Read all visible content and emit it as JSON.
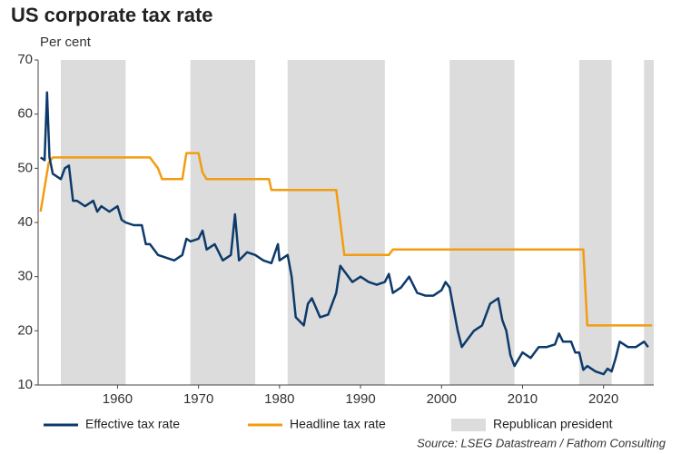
{
  "chart_data": {
    "type": "line",
    "title": "US corporate tax rate",
    "subtitle": "Per cent",
    "source": "Source: LSEG Datastream / Fathom Consulting",
    "xlim": [
      1950.2,
      2026.2
    ],
    "xticks": [
      1960,
      1970,
      1980,
      1990,
      2000,
      2010,
      2020
    ],
    "ylim": [
      10,
      70
    ],
    "yticks": [
      10,
      20,
      30,
      40,
      50,
      60,
      70
    ],
    "shading": {
      "name": "Republican president",
      "color": "#dcdcdc",
      "periods": [
        [
          1953,
          1961
        ],
        [
          1969,
          1977
        ],
        [
          1981,
          1993
        ],
        [
          2001,
          2009
        ],
        [
          2017,
          2021
        ],
        [
          2025,
          2026.2
        ]
      ]
    },
    "series": [
      {
        "name": "Effective tax rate",
        "color": "#0d3a6b",
        "x": [
          1950.5,
          1951,
          1951.3,
          1951.6,
          1952,
          1953,
          1953.5,
          1954,
          1954.5,
          1955,
          1956,
          1957,
          1957.5,
          1958,
          1959,
          1960,
          1960.5,
          1961,
          1962,
          1963,
          1963.5,
          1964,
          1965,
          1966,
          1967,
          1968,
          1968.5,
          1969,
          1970,
          1970.5,
          1971,
          1972,
          1973,
          1974,
          1974.5,
          1975,
          1976,
          1977,
          1978,
          1979,
          1979.8,
          1980,
          1981,
          1981.5,
          1982,
          1983,
          1983.5,
          1984,
          1985,
          1986,
          1987,
          1987.5,
          1988,
          1989,
          1990,
          1991,
          1992,
          1993,
          1993.5,
          1994,
          1995,
          1996,
          1997,
          1998,
          1999,
          2000,
          2000.5,
          2001,
          2001.5,
          2002,
          2002.5,
          2003,
          2004,
          2005,
          2006,
          2006.5,
          2007,
          2007.5,
          2008,
          2008.5,
          2009,
          2010,
          2011,
          2012,
          2013,
          2014,
          2014.5,
          2015,
          2016,
          2016.5,
          2017,
          2017.5,
          2018,
          2019,
          2020,
          2020.5,
          2021,
          2021.5,
          2022,
          2023,
          2024,
          2025,
          2025.5
        ],
        "values": [
          52,
          51.5,
          64,
          52,
          49,
          48,
          50,
          50.5,
          44,
          44,
          43,
          44,
          42,
          43,
          42,
          43,
          40.5,
          40,
          39.5,
          39.5,
          36,
          36,
          34,
          33.5,
          33,
          34,
          37,
          36.5,
          37,
          38.5,
          35,
          36,
          33,
          34,
          41.5,
          33,
          34.5,
          34,
          33,
          32.5,
          36,
          33,
          34,
          30,
          22.5,
          21,
          25,
          26,
          22.5,
          23,
          27,
          32,
          31,
          29,
          30,
          29,
          28.5,
          29,
          30.5,
          27,
          28,
          30,
          27,
          26.5,
          26.5,
          27.5,
          29,
          28,
          24,
          20,
          17,
          18,
          20,
          21,
          25,
          25.5,
          26,
          22,
          20,
          15.5,
          13.5,
          16,
          15,
          17,
          17,
          17.5,
          19.5,
          18,
          18,
          16,
          16,
          12.8,
          13.5,
          12.5,
          12,
          13,
          12.5,
          15,
          18,
          17,
          17,
          18,
          17
        ]
      },
      {
        "name": "Headline tax rate",
        "color": "#f39c12",
        "x": [
          1950.5,
          1951.5,
          1952,
          1964,
          1965,
          1965.5,
          1968,
          1968.5,
          1970,
          1970.5,
          1971,
          1978.7,
          1979,
          1987,
          1987.5,
          1988,
          1993.5,
          1994,
          2017.5,
          2018,
          2026
        ],
        "values": [
          42,
          51,
          52,
          52,
          50,
          48,
          48,
          52.8,
          52.8,
          49.2,
          48,
          48,
          46,
          46,
          40,
          34,
          34,
          35,
          35,
          21,
          21
        ]
      }
    ]
  }
}
